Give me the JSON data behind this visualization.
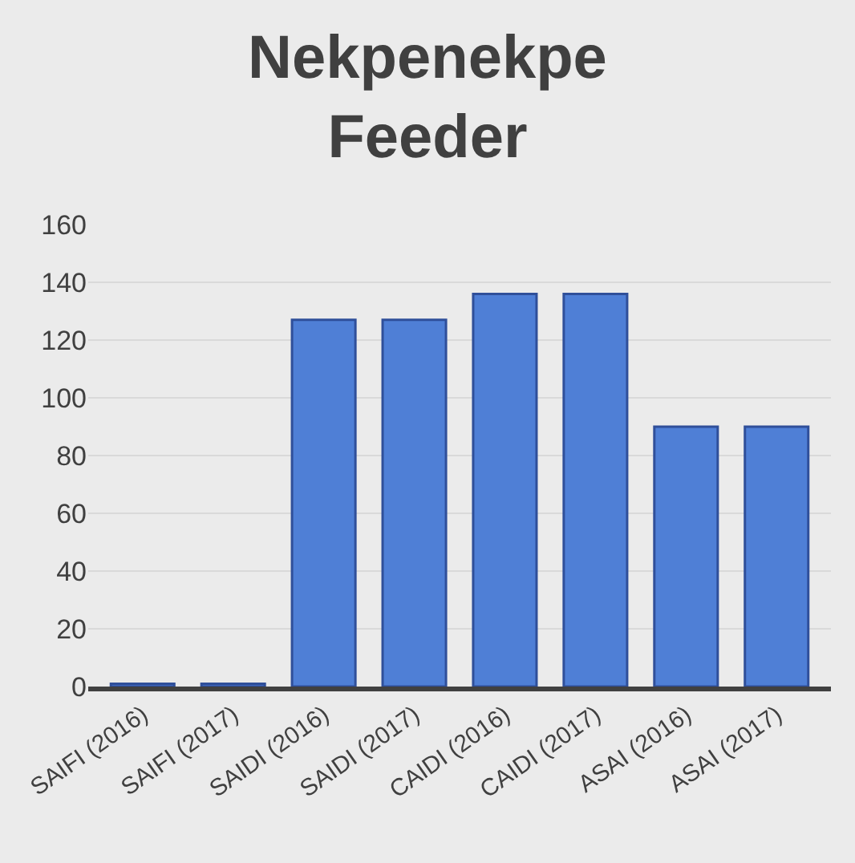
{
  "chart_data": {
    "type": "bar",
    "title": "Nekpenekpe Feeder",
    "categories": [
      "SAIFI (2016)",
      "SAIFI (2017)",
      "SAIDI (2016)",
      "SAIDI (2017)",
      "CAIDI (2016)",
      "CAIDI (2017)",
      "ASAI (2016)",
      "ASAI (2017)"
    ],
    "values": [
      1,
      1,
      127,
      127,
      136,
      136,
      90,
      90
    ],
    "color": "#4f7fd6",
    "ylim": [
      0,
      160
    ],
    "yticks": [
      0,
      20,
      40,
      60,
      80,
      100,
      120,
      140,
      160
    ],
    "grid": "y"
  }
}
